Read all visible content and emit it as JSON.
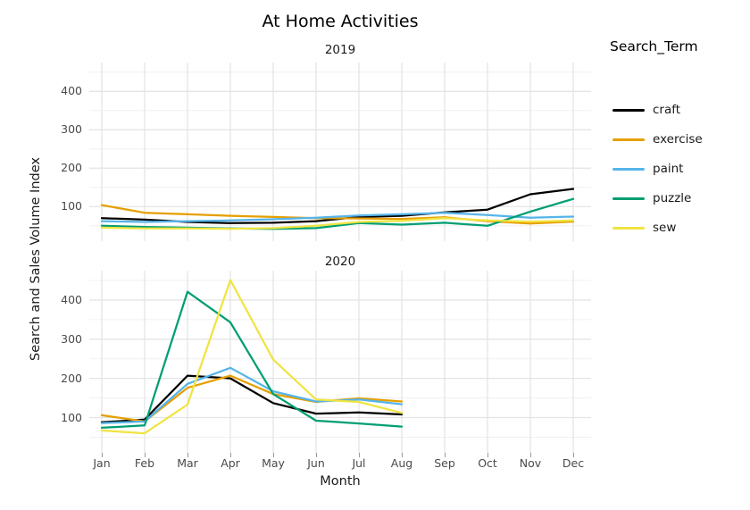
{
  "title": "At Home Activities",
  "axes": {
    "x_label": "Month",
    "y_label": "Search and Sales Volume Index"
  },
  "facets": [
    "2019",
    "2020"
  ],
  "x_categories": [
    "Jan",
    "Feb",
    "Mar",
    "Apr",
    "May",
    "Jun",
    "Jul",
    "Aug",
    "Sep",
    "Oct",
    "Nov",
    "Dec"
  ],
  "legend": {
    "title": "Search_Term",
    "entries": [
      {
        "label": "craft",
        "color": "#000000"
      },
      {
        "label": "exercise",
        "color": "#E69F00"
      },
      {
        "label": "paint",
        "color": "#56B4E9"
      },
      {
        "label": "puzzle",
        "color": "#009E73"
      },
      {
        "label": "sew",
        "color": "#F0E442"
      }
    ]
  },
  "chart_data": [
    {
      "type": "line",
      "facet": "2019",
      "x": [
        "Jan",
        "Feb",
        "Mar",
        "Apr",
        "May",
        "Jun",
        "Jul",
        "Aug",
        "Sep",
        "Oct",
        "Nov",
        "Dec"
      ],
      "ylim": [
        10,
        475
      ],
      "yticks": [
        100,
        200,
        300,
        400
      ],
      "grid": true,
      "series": [
        {
          "name": "craft",
          "values": [
            70,
            66,
            60,
            57,
            58,
            62,
            73,
            76,
            85,
            92,
            132,
            146
          ]
        },
        {
          "name": "exercise",
          "values": [
            104,
            84,
            80,
            76,
            73,
            70,
            69,
            68,
            72,
            62,
            56,
            61
          ]
        },
        {
          "name": "paint",
          "values": [
            62,
            60,
            62,
            64,
            67,
            71,
            77,
            80,
            84,
            78,
            71,
            74
          ]
        },
        {
          "name": "puzzle",
          "values": [
            50,
            47,
            45,
            43,
            42,
            44,
            57,
            53,
            58,
            50,
            87,
            120
          ]
        },
        {
          "name": "sew",
          "values": [
            45,
            43,
            43,
            42,
            44,
            50,
            60,
            63,
            70,
            64,
            61,
            64
          ]
        }
      ]
    },
    {
      "type": "line",
      "facet": "2020",
      "x": [
        "Jan",
        "Feb",
        "Mar",
        "Apr",
        "May",
        "Jun",
        "Jul",
        "Aug"
      ],
      "ylim": [
        10,
        475
      ],
      "yticks": [
        100,
        200,
        300,
        400
      ],
      "grid": true,
      "series": [
        {
          "name": "craft",
          "values": [
            88,
            95,
            207,
            200,
            137,
            110,
            113,
            108
          ]
        },
        {
          "name": "exercise",
          "values": [
            106,
            90,
            176,
            207,
            160,
            140,
            149,
            141
          ]
        },
        {
          "name": "paint",
          "values": [
            86,
            90,
            186,
            227,
            167,
            141,
            146,
            134
          ]
        },
        {
          "name": "puzzle",
          "values": [
            74,
            80,
            421,
            343,
            160,
            92,
            85,
            77
          ]
        },
        {
          "name": "sew",
          "values": [
            67,
            60,
            133,
            451,
            248,
            146,
            140,
            112
          ]
        }
      ]
    }
  ]
}
